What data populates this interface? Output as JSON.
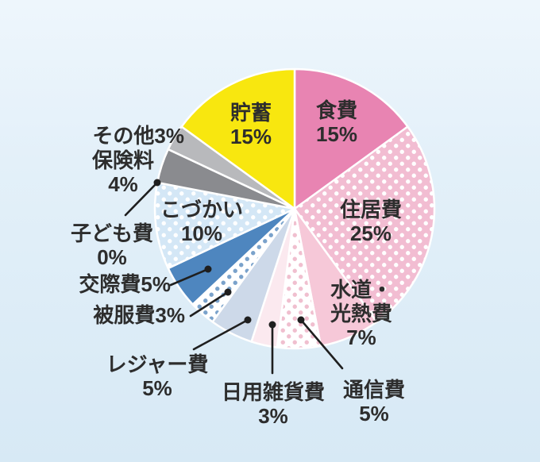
{
  "chart_data": {
    "type": "pie",
    "direction": "clockwise",
    "start_angle_deg": 0,
    "unit": "%",
    "slices": [
      {
        "label": "食費",
        "value": 15,
        "pct_label": "15%",
        "color": "#e884b2",
        "pattern": "solid"
      },
      {
        "label": "住居費",
        "value": 25,
        "pct_label": "25%",
        "color": "#f2bdd2",
        "pattern": "white-dots"
      },
      {
        "label": "水道・\n光熱費",
        "value": 7,
        "pct_label": "7%",
        "color": "#f6c8d8",
        "pattern": "solid"
      },
      {
        "label": "通信費",
        "value": 5,
        "pct_label": "5%",
        "color": "#ffffff",
        "pattern": "color-dots",
        "dot_color": "#f0bfcf"
      },
      {
        "label": "日用雑貨費",
        "value": 3,
        "pct_label": "3%",
        "color": "#fbe9ef",
        "pattern": "solid"
      },
      {
        "label": "レジャー費",
        "value": 5,
        "pct_label": "5%",
        "color": "#cdd9e9",
        "pattern": "solid"
      },
      {
        "label": "被服費",
        "value": 3,
        "pct_label": "3%",
        "color": "#ffffff",
        "pattern": "color-dots",
        "dot_color": "#7aa2cb"
      },
      {
        "label": "交際費",
        "value": 5,
        "pct_label": "5%",
        "color": "#4e86bf",
        "pattern": "solid"
      },
      {
        "label": "こづかい",
        "value": 10,
        "pct_label": "10%",
        "color": "#d4e7f6",
        "pattern": "white-dots"
      },
      {
        "label": "子ども費",
        "value": 0,
        "pct_label": "0%",
        "color": "#ffffff",
        "pattern": "solid"
      },
      {
        "label": "保険料",
        "value": 4,
        "pct_label": "4%",
        "color": "#8a8b8f",
        "pattern": "solid"
      },
      {
        "label": "その他",
        "value": 3,
        "pct_label": "3%",
        "color": "#b8b9bc",
        "pattern": "solid"
      },
      {
        "label": "貯蓄",
        "value": 15,
        "pct_label": "15%",
        "color": "#f8e70f",
        "pattern": "solid"
      }
    ],
    "colors": {
      "background_top": "#eef6fc",
      "background_bottom": "#d7e9f5",
      "slice_separator": "#ffffff",
      "leader_line": "#1f1f1f",
      "label_text": "#2d2d2d"
    }
  }
}
